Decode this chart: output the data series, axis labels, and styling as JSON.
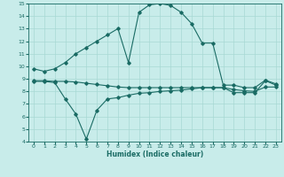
{
  "title": "",
  "xlabel": "Humidex (Indice chaleur)",
  "xlim": [
    -0.5,
    23.5
  ],
  "ylim": [
    4,
    15
  ],
  "xticks": [
    0,
    1,
    2,
    3,
    4,
    5,
    6,
    7,
    8,
    9,
    10,
    11,
    12,
    13,
    14,
    15,
    16,
    17,
    18,
    19,
    20,
    21,
    22,
    23
  ],
  "yticks": [
    4,
    5,
    6,
    7,
    8,
    9,
    10,
    11,
    12,
    13,
    14,
    15
  ],
  "bg_color": "#c8ecea",
  "grid_color": "#a8d8d4",
  "line_color": "#1a6b64",
  "line1_x": [
    0,
    1,
    2,
    3,
    4,
    5,
    6,
    7,
    8,
    9,
    10,
    11,
    12,
    13,
    14,
    15,
    16,
    17,
    18,
    19,
    20,
    21,
    22,
    23
  ],
  "line1_y": [
    9.8,
    9.6,
    9.8,
    10.3,
    11.0,
    11.5,
    12.0,
    12.5,
    13.0,
    10.3,
    14.3,
    14.9,
    15.0,
    14.85,
    14.3,
    13.4,
    11.85,
    11.85,
    8.5,
    8.5,
    8.3,
    8.3,
    8.9,
    8.6
  ],
  "line2_x": [
    0,
    1,
    2,
    3,
    4,
    5,
    6,
    7,
    8,
    9,
    10,
    11,
    12,
    13,
    14,
    15,
    16,
    17,
    18,
    19,
    20,
    21,
    22,
    23
  ],
  "line2_y": [
    8.8,
    8.8,
    8.7,
    7.4,
    6.2,
    4.2,
    6.5,
    7.4,
    7.5,
    7.7,
    7.85,
    7.9,
    8.0,
    8.05,
    8.1,
    8.2,
    8.3,
    8.3,
    8.3,
    7.9,
    7.9,
    7.9,
    8.85,
    8.5
  ],
  "line3_x": [
    0,
    1,
    2,
    3,
    4,
    5,
    6,
    7,
    8,
    9,
    10,
    11,
    12,
    13,
    14,
    15,
    16,
    17,
    18,
    19,
    20,
    21,
    22,
    23
  ],
  "line3_y": [
    8.85,
    8.85,
    8.8,
    8.8,
    8.75,
    8.65,
    8.55,
    8.45,
    8.35,
    8.3,
    8.3,
    8.3,
    8.3,
    8.3,
    8.3,
    8.3,
    8.3,
    8.3,
    8.3,
    8.15,
    8.05,
    8.0,
    8.35,
    8.35
  ]
}
